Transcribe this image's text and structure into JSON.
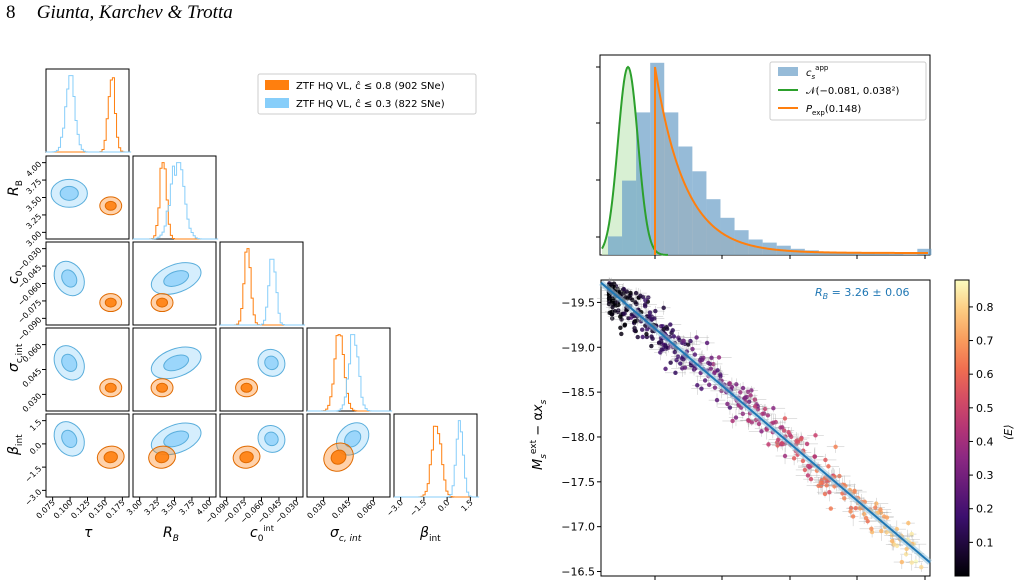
{
  "header": {
    "page_number": "8",
    "authors": "Giunta, Karchev & Trotta"
  },
  "colors": {
    "orange": "#ff7f0e",
    "blue": "#87cefa",
    "green": "#2ca02c",
    "line_blue": "#1f77b4",
    "fill_blue": "#9ecae1"
  },
  "corner": {
    "legend": [
      "ZTF HQ VL, ĉ ≤ 0.8 (902 SNe)",
      "ZTF HQ VL, ĉ ≤ 0.3 (822 SNe)"
    ],
    "params": [
      "τ",
      "R_B",
      "c_0^int",
      "σ_c,int",
      "β_int"
    ],
    "xticks": [
      [
        "0.075",
        "0.100",
        "0.125",
        "0.150",
        "0.175"
      ],
      [
        "3.00",
        "3.25",
        "3.50",
        "3.75",
        "4.00"
      ],
      [
        "−0.090",
        "−0.075",
        "−0.060",
        "−0.045",
        "−0.030"
      ],
      [
        "0.030",
        "0.045",
        "0.060"
      ],
      [
        "−3.0",
        "−1.5",
        "0.0",
        "1.5"
      ]
    ],
    "yticks": {
      "R_B": [
        "4.00",
        "3.75",
        "3.50",
        "3.25",
        "3.00"
      ],
      "c_0^int": [
        "−0.030",
        "−0.045",
        "−0.060",
        "−0.075",
        "−0.090"
      ],
      "σ_c,int": [
        "0.060",
        "0.045",
        "0.030"
      ],
      "β_int": [
        "1.5",
        "0.0",
        "−1.5",
        "−3.0"
      ]
    }
  },
  "chart_data": [
    {
      "type": "histogram",
      "legend": [
        "c_s^app",
        "𝒩(−0.081, 0.038²)",
        "P_exp(0.148)"
      ],
      "series": [
        {
          "name": "c_s^app",
          "kind": "hist",
          "bin_heights": [
            0.06,
            0.24,
            0.46,
            0.62,
            0.46,
            0.35,
            0.27,
            0.18,
            0.12,
            0.08,
            0.05,
            0.04,
            0.03,
            0.02,
            0.015,
            0.01,
            0.008,
            0.006,
            0.005,
            0.004,
            0.003,
            0.002,
            0.02
          ]
        },
        {
          "name": "𝒩(−0.081, 0.038²)",
          "kind": "normal",
          "mean": -0.081,
          "sd": 0.038
        },
        {
          "name": "P_exp(0.148)",
          "kind": "exponential",
          "scale": 0.148
        }
      ]
    },
    {
      "type": "scatter",
      "annotation": "R_B = 3.26 ± 0.06",
      "ylabel": "M_s^ext − αx_s",
      "yticks": [
        "−19.5",
        "−19.0",
        "−18.5",
        "−18.0",
        "−17.5",
        "−17.0",
        "−16.5"
      ],
      "ylim": [
        -19.75,
        -16.45
      ],
      "colorbar": {
        "label": "⟨E⟩",
        "ticks": [
          "0.1",
          "0.2",
          "0.3",
          "0.4",
          "0.5",
          "0.6",
          "0.7",
          "0.8"
        ],
        "range": [
          0.0,
          0.88
        ]
      },
      "fit_line": {
        "y_at_left": -19.72,
        "y_at_right": -16.6
      },
      "n_points": 900
    }
  ]
}
